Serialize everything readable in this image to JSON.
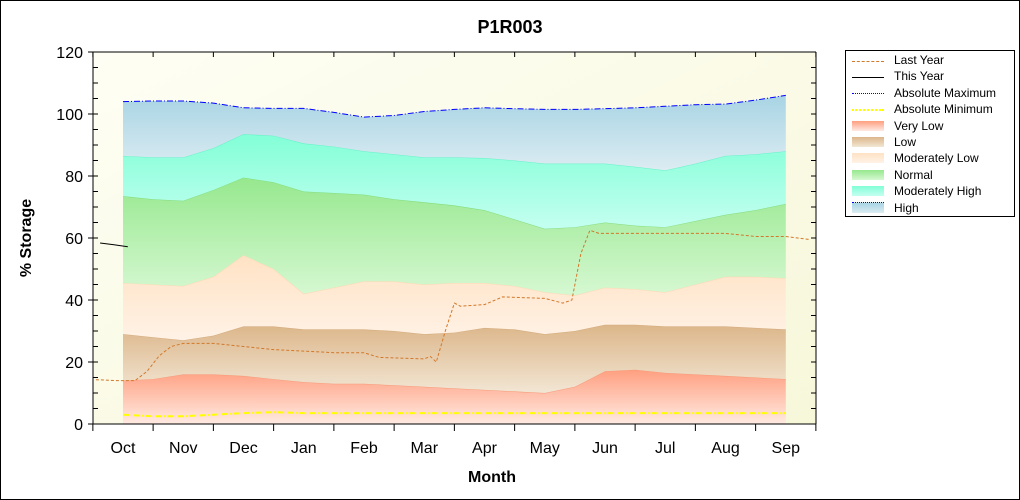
{
  "chart_data": {
    "type": "area",
    "title": "P1R003",
    "xlabel": "Month",
    "ylabel": "% Storage",
    "ylim": [
      0,
      120
    ],
    "yticks": [
      0,
      20,
      40,
      60,
      80,
      100,
      120
    ],
    "categories": [
      "Oct",
      "Nov",
      "Dec",
      "Jan",
      "Feb",
      "Mar",
      "Apr",
      "May",
      "Jun",
      "Jul",
      "Aug",
      "Sep"
    ],
    "grid": false,
    "legend_position": "right",
    "band_x": [
      0,
      0.5,
      1,
      1.5,
      2,
      2.5,
      3,
      3.5,
      4,
      4.5,
      5,
      5.5,
      6,
      6.5,
      7,
      7.5,
      8,
      8.5,
      9,
      9.5,
      10,
      10.5,
      11
    ],
    "bands": [
      {
        "name": "Very Low",
        "top_color": "#ff9f80",
        "bottom_color": "#ffeae2",
        "line_color": "#f79a7a",
        "upper": [
          14,
          14.5,
          16,
          16,
          15.5,
          14.5,
          13.5,
          13,
          13,
          12.5,
          12,
          11.5,
          11,
          10.5,
          10,
          12,
          17,
          17.5,
          16.5,
          16,
          15.5,
          15,
          14.5
        ]
      },
      {
        "name": "Low",
        "top_color": "#dcb68a",
        "bottom_color": "#f2e6d4",
        "line_color": "#d4ab7e",
        "upper": [
          29,
          28,
          27,
          28.5,
          31.5,
          31.5,
          30.5,
          30.5,
          30.5,
          30,
          29,
          29.5,
          31,
          30.5,
          29,
          30,
          32,
          32,
          31.5,
          31.5,
          31.5,
          31,
          30.5
        ]
      },
      {
        "name": "Moderately Low",
        "top_color": "#ffe2c4",
        "bottom_color": "#fff2e6",
        "line_color": "#ffd8b4",
        "upper": [
          45.5,
          45,
          44.5,
          47.5,
          54.5,
          50,
          42,
          44,
          46,
          46,
          45,
          45.5,
          45.5,
          44.5,
          42.5,
          41.5,
          44,
          43.5,
          42.5,
          45,
          47.5,
          47.5,
          47
        ]
      },
      {
        "name": "Normal",
        "top_color": "#96e88e",
        "bottom_color": "#d6f8d2",
        "line_color": "#84dc7c",
        "upper": [
          73.5,
          72.5,
          72,
          75.5,
          79.5,
          78,
          75,
          74.5,
          74,
          72.5,
          71.5,
          70.5,
          69,
          66,
          63,
          63.5,
          65,
          64,
          63.5,
          65.5,
          67.5,
          69,
          71
        ]
      },
      {
        "name": "Moderately High",
        "top_color": "#82ffd6",
        "bottom_color": "#c4fff0",
        "line_color": "#66f2c8",
        "upper": [
          86.5,
          86,
          86,
          89,
          93.5,
          93,
          90.5,
          89.5,
          88,
          87,
          86,
          86,
          85.8,
          85,
          84,
          84,
          84,
          83,
          81.8,
          84,
          86.5,
          87,
          88
        ]
      },
      {
        "name": "High",
        "top_color": "#a8d4e4",
        "bottom_color": "#dcecf2",
        "line_color": "#0000ff",
        "upper": [
          104,
          104.2,
          104.2,
          103.5,
          102,
          101.8,
          101.8,
          100.5,
          99,
          99.5,
          100.8,
          101.5,
          102,
          101.7,
          101.5,
          101.5,
          101.7,
          102,
          102.5,
          103,
          103.2,
          104.5,
          106
        ]
      }
    ],
    "series": [
      {
        "name": "Last Year",
        "color": "#d2782a",
        "style": "dashed",
        "x": [
          -0.45,
          -0.1,
          0.2,
          0.4,
          0.6,
          0.8,
          1,
          1.5,
          2,
          2.5,
          3,
          3.5,
          4,
          4.25,
          5,
          5.1,
          5.2,
          5.35,
          5.5,
          5.6,
          6,
          6.3,
          7,
          7.3,
          7.45,
          7.6,
          7.75,
          7.9,
          9,
          10,
          10.5,
          11,
          11.4
        ],
        "y": [
          14.3,
          14,
          14,
          17,
          22,
          25,
          26,
          26,
          25,
          24,
          23.5,
          23,
          23,
          21.5,
          21,
          21.8,
          20,
          30,
          39,
          38,
          38.5,
          41,
          40.5,
          39,
          40,
          55,
          62.5,
          61.5,
          61.5,
          61.5,
          60.5,
          60.5,
          59.5
        ]
      },
      {
        "name": "This Year",
        "color": "#000000",
        "style": "solid",
        "x": [
          -0.38,
          -0.15,
          0.08
        ],
        "y": [
          58.4,
          57.8,
          57.2
        ]
      },
      {
        "name": "Absolute Maximum",
        "color": "#0000ff",
        "style": "dashdot",
        "x": "band_x",
        "y": "High.upper"
      },
      {
        "name": "Absolute Minimum",
        "color": "#ffff00",
        "style": "dashdot",
        "x": [
          0,
          0.5,
          1,
          1.5,
          2,
          2.5,
          3,
          3.5,
          4,
          4.5,
          5,
          5.5,
          6,
          6.5,
          7,
          7.5,
          8,
          8.5,
          9,
          9.5,
          10,
          10.5,
          11
        ],
        "y": [
          3,
          2.5,
          2.5,
          3,
          3.5,
          3.8,
          3.5,
          3.5,
          3.5,
          3.5,
          3.5,
          3.5,
          3.5,
          3.5,
          3.5,
          3.5,
          3.5,
          3.5,
          3.5,
          3.5,
          3.5,
          3.5,
          3.5
        ]
      }
    ],
    "legend": [
      "Last Year",
      "This Year",
      "Absolute Maximum",
      "Absolute Minimum",
      "Very Low",
      "Low",
      "Moderately Low",
      "Normal",
      "Moderately High",
      "High"
    ]
  }
}
